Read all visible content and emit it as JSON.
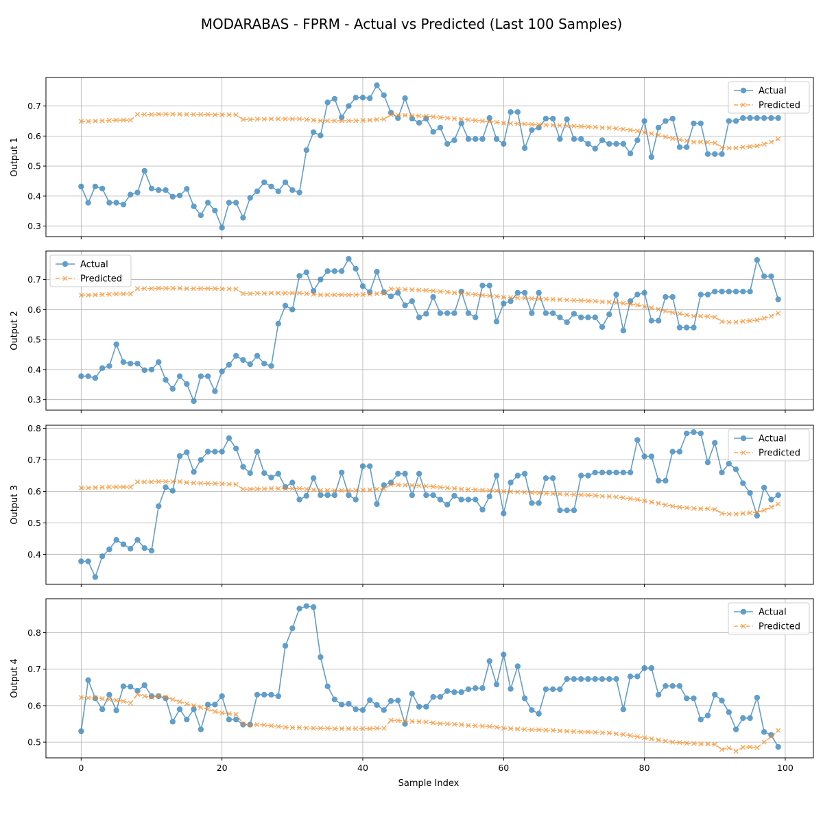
{
  "chart_data": {
    "type": "line",
    "title": "MODARABAS - FPRM - Actual vs Predicted (Last 100 Samples)",
    "xlabel": "Sample Index",
    "grid": true,
    "sharex": true,
    "xlim": [
      -5,
      104
    ],
    "xticks": [
      0,
      20,
      40,
      60,
      80,
      100
    ],
    "colors": {
      "actual": "#1f77b4",
      "predicted": "#ff7f0e"
    },
    "legend_labels": [
      "Actual",
      "Predicted"
    ],
    "panels": [
      {
        "ylabel": "Output 1",
        "ylim": [
          0.265,
          0.795
        ],
        "yticks": [
          0.3,
          0.4,
          0.5,
          0.6,
          0.7
        ],
        "legend": "top-right",
        "series": [
          {
            "name": "Actual",
            "values": [
              0.432,
              0.378,
              0.432,
              0.425,
              0.378,
              0.378,
              0.372,
              0.405,
              0.412,
              0.484,
              0.425,
              0.42,
              0.42,
              0.398,
              0.402,
              0.424,
              0.366,
              0.336,
              0.378,
              0.352,
              0.295,
              0.378,
              0.378,
              0.328,
              0.394,
              0.416,
              0.446,
              0.432,
              0.416,
              0.446,
              0.42,
              0.412,
              0.553,
              0.613,
              0.602,
              0.712,
              0.724,
              0.662,
              0.7,
              0.728,
              0.728,
              0.726,
              0.769,
              0.736,
              0.678,
              0.66,
              0.726,
              0.658,
              0.644,
              0.658,
              0.614,
              0.628,
              0.574,
              0.586,
              0.642,
              0.59,
              0.59,
              0.59,
              0.66,
              0.59,
              0.574,
              0.68,
              0.68,
              0.56,
              0.62,
              0.628,
              0.658,
              0.658,
              0.59,
              0.656,
              0.59,
              0.59,
              0.574,
              0.558,
              0.586,
              0.574,
              0.574,
              0.574,
              0.542,
              0.586,
              0.65,
              0.53,
              0.628,
              0.65,
              0.658,
              0.563,
              0.563,
              0.642,
              0.642,
              0.54,
              0.54,
              0.54,
              0.65,
              0.65,
              0.66,
              0.66,
              0.66,
              0.66,
              0.66,
              0.66
            ]
          },
          {
            "name": "Predicted",
            "values": [
              0.649,
              0.649,
              0.65,
              0.651,
              0.652,
              0.653,
              0.653,
              0.653,
              0.672,
              0.672,
              0.672,
              0.673,
              0.673,
              0.673,
              0.673,
              0.672,
              0.672,
              0.672,
              0.672,
              0.671,
              0.671,
              0.671,
              0.671,
              0.655,
              0.655,
              0.656,
              0.656,
              0.657,
              0.657,
              0.657,
              0.657,
              0.657,
              0.655,
              0.653,
              0.651,
              0.651,
              0.651,
              0.651,
              0.651,
              0.651,
              0.652,
              0.653,
              0.655,
              0.656,
              0.671,
              0.67,
              0.669,
              0.668,
              0.667,
              0.666,
              0.664,
              0.662,
              0.66,
              0.658,
              0.656,
              0.654,
              0.652,
              0.65,
              0.648,
              0.646,
              0.643,
              0.642,
              0.641,
              0.64,
              0.639,
              0.638,
              0.637,
              0.636,
              0.635,
              0.634,
              0.633,
              0.632,
              0.631,
              0.63,
              0.628,
              0.627,
              0.625,
              0.623,
              0.62,
              0.617,
              0.612,
              0.608,
              0.603,
              0.597,
              0.592,
              0.588,
              0.584,
              0.58,
              0.58,
              0.579,
              0.577,
              0.562,
              0.56,
              0.56,
              0.563,
              0.565,
              0.567,
              0.573,
              0.58,
              0.59
            ]
          }
        ]
      },
      {
        "ylabel": "Output 2",
        "ylim": [
          0.265,
          0.795
        ],
        "yticks": [
          0.3,
          0.4,
          0.5,
          0.6,
          0.7
        ],
        "legend": "top-left",
        "series": [
          {
            "name": "Actual",
            "values": [
              0.378,
              0.378,
              0.372,
              0.405,
              0.412,
              0.484,
              0.425,
              0.42,
              0.42,
              0.398,
              0.4,
              0.425,
              0.366,
              0.336,
              0.378,
              0.352,
              0.295,
              0.378,
              0.378,
              0.328,
              0.394,
              0.416,
              0.446,
              0.432,
              0.418,
              0.446,
              0.42,
              0.412,
              0.553,
              0.613,
              0.6,
              0.712,
              0.724,
              0.662,
              0.7,
              0.728,
              0.728,
              0.728,
              0.769,
              0.736,
              0.678,
              0.658,
              0.726,
              0.658,
              0.644,
              0.656,
              0.614,
              0.628,
              0.574,
              0.586,
              0.642,
              0.588,
              0.588,
              0.588,
              0.66,
              0.588,
              0.574,
              0.68,
              0.68,
              0.56,
              0.62,
              0.628,
              0.656,
              0.656,
              0.588,
              0.656,
              0.588,
              0.588,
              0.574,
              0.558,
              0.586,
              0.574,
              0.574,
              0.574,
              0.542,
              0.584,
              0.65,
              0.53,
              0.628,
              0.65,
              0.656,
              0.563,
              0.563,
              0.642,
              0.642,
              0.54,
              0.54,
              0.54,
              0.65,
              0.65,
              0.66,
              0.66,
              0.66,
              0.66,
              0.66,
              0.66,
              0.765,
              0.711,
              0.711,
              0.634
            ]
          },
          {
            "name": "Predicted",
            "values": [
              0.648,
              0.648,
              0.649,
              0.65,
              0.651,
              0.652,
              0.652,
              0.652,
              0.67,
              0.67,
              0.67,
              0.671,
              0.671,
              0.671,
              0.671,
              0.67,
              0.67,
              0.67,
              0.67,
              0.67,
              0.669,
              0.669,
              0.669,
              0.653,
              0.653,
              0.654,
              0.654,
              0.655,
              0.655,
              0.655,
              0.655,
              0.655,
              0.653,
              0.651,
              0.649,
              0.649,
              0.649,
              0.649,
              0.649,
              0.649,
              0.65,
              0.651,
              0.653,
              0.654,
              0.669,
              0.668,
              0.667,
              0.666,
              0.665,
              0.664,
              0.662,
              0.66,
              0.658,
              0.656,
              0.654,
              0.652,
              0.65,
              0.648,
              0.646,
              0.644,
              0.641,
              0.64,
              0.639,
              0.638,
              0.637,
              0.636,
              0.635,
              0.634,
              0.633,
              0.632,
              0.631,
              0.63,
              0.629,
              0.628,
              0.626,
              0.625,
              0.623,
              0.621,
              0.618,
              0.615,
              0.61,
              0.606,
              0.601,
              0.595,
              0.59,
              0.586,
              0.582,
              0.578,
              0.578,
              0.577,
              0.575,
              0.56,
              0.558,
              0.558,
              0.561,
              0.563,
              0.565,
              0.571,
              0.578,
              0.588
            ]
          }
        ]
      },
      {
        "ylabel": "Output 3",
        "ylim": [
          0.305,
          0.81
        ],
        "yticks": [
          0.4,
          0.5,
          0.6,
          0.7,
          0.8
        ],
        "legend": "top-right",
        "series": [
          {
            "name": "Actual",
            "values": [
              0.378,
              0.378,
              0.328,
              0.394,
              0.416,
              0.446,
              0.432,
              0.418,
              0.446,
              0.42,
              0.412,
              0.553,
              0.613,
              0.602,
              0.712,
              0.724,
              0.662,
              0.7,
              0.726,
              0.726,
              0.726,
              0.769,
              0.736,
              0.678,
              0.658,
              0.726,
              0.658,
              0.644,
              0.656,
              0.614,
              0.628,
              0.574,
              0.586,
              0.642,
              0.588,
              0.588,
              0.588,
              0.66,
              0.588,
              0.574,
              0.68,
              0.68,
              0.56,
              0.62,
              0.628,
              0.656,
              0.656,
              0.588,
              0.656,
              0.588,
              0.588,
              0.574,
              0.558,
              0.586,
              0.574,
              0.574,
              0.574,
              0.542,
              0.584,
              0.65,
              0.53,
              0.628,
              0.65,
              0.656,
              0.563,
              0.563,
              0.642,
              0.642,
              0.54,
              0.54,
              0.54,
              0.65,
              0.65,
              0.66,
              0.66,
              0.66,
              0.66,
              0.66,
              0.66,
              0.763,
              0.711,
              0.711,
              0.634,
              0.634,
              0.726,
              0.726,
              0.784,
              0.788,
              0.784,
              0.692,
              0.754,
              0.66,
              0.688,
              0.67,
              0.626,
              0.595,
              0.523,
              0.612,
              0.574,
              0.588
            ]
          },
          {
            "name": "Predicted",
            "values": [
              0.611,
              0.611,
              0.612,
              0.613,
              0.614,
              0.614,
              0.614,
              0.614,
              0.63,
              0.63,
              0.63,
              0.631,
              0.631,
              0.631,
              0.631,
              0.628,
              0.627,
              0.626,
              0.625,
              0.625,
              0.624,
              0.623,
              0.622,
              0.607,
              0.607,
              0.608,
              0.608,
              0.609,
              0.609,
              0.609,
              0.609,
              0.609,
              0.607,
              0.605,
              0.603,
              0.603,
              0.603,
              0.603,
              0.603,
              0.603,
              0.604,
              0.605,
              0.607,
              0.608,
              0.622,
              0.621,
              0.62,
              0.619,
              0.618,
              0.617,
              0.615,
              0.613,
              0.611,
              0.609,
              0.607,
              0.606,
              0.605,
              0.604,
              0.603,
              0.602,
              0.6,
              0.599,
              0.598,
              0.597,
              0.596,
              0.595,
              0.594,
              0.593,
              0.592,
              0.591,
              0.59,
              0.589,
              0.588,
              0.587,
              0.585,
              0.584,
              0.582,
              0.58,
              0.577,
              0.574,
              0.57,
              0.566,
              0.562,
              0.557,
              0.553,
              0.55,
              0.548,
              0.546,
              0.545,
              0.545,
              0.543,
              0.53,
              0.528,
              0.528,
              0.53,
              0.532,
              0.534,
              0.54,
              0.55,
              0.56
            ]
          }
        ]
      },
      {
        "ylabel": "Output 4",
        "ylim": [
          0.457,
          0.893
        ],
        "yticks": [
          0.5,
          0.6,
          0.7,
          0.8
        ],
        "legend": "top-right",
        "series": [
          {
            "name": "Actual",
            "values": [
              0.53,
              0.67,
              0.62,
              0.59,
              0.63,
              0.587,
              0.653,
              0.652,
              0.641,
              0.656,
              0.626,
              0.626,
              0.62,
              0.556,
              0.59,
              0.562,
              0.59,
              0.535,
              0.603,
              0.603,
              0.626,
              0.562,
              0.562,
              0.548,
              0.548,
              0.63,
              0.63,
              0.63,
              0.626,
              0.764,
              0.812,
              0.866,
              0.873,
              0.87,
              0.733,
              0.653,
              0.617,
              0.603,
              0.605,
              0.59,
              0.588,
              0.615,
              0.602,
              0.588,
              0.613,
              0.614,
              0.55,
              0.633,
              0.597,
              0.597,
              0.624,
              0.624,
              0.64,
              0.637,
              0.637,
              0.645,
              0.648,
              0.648,
              0.722,
              0.658,
              0.74,
              0.646,
              0.708,
              0.62,
              0.588,
              0.578,
              0.645,
              0.645,
              0.645,
              0.673,
              0.673,
              0.673,
              0.673,
              0.673,
              0.673,
              0.673,
              0.673,
              0.59,
              0.68,
              0.68,
              0.703,
              0.703,
              0.63,
              0.654,
              0.654,
              0.654,
              0.62,
              0.62,
              0.562,
              0.573,
              0.63,
              0.614,
              0.582,
              0.535,
              0.566,
              0.566,
              0.622,
              0.528,
              0.52,
              0.487
            ]
          },
          {
            "name": "Predicted",
            "values": [
              0.622,
              0.621,
              0.622,
              0.619,
              0.617,
              0.615,
              0.612,
              0.607,
              0.631,
              0.626,
              0.623,
              0.627,
              0.624,
              0.617,
              0.611,
              0.605,
              0.6,
              0.595,
              0.59,
              0.584,
              0.58,
              0.578,
              0.576,
              0.55,
              0.547,
              0.548,
              0.547,
              0.545,
              0.543,
              0.541,
              0.54,
              0.54,
              0.539,
              0.538,
              0.538,
              0.538,
              0.537,
              0.537,
              0.537,
              0.537,
              0.537,
              0.537,
              0.538,
              0.538,
              0.56,
              0.559,
              0.558,
              0.557,
              0.556,
              0.555,
              0.553,
              0.551,
              0.55,
              0.549,
              0.548,
              0.546,
              0.545,
              0.544,
              0.543,
              0.541,
              0.538,
              0.537,
              0.536,
              0.535,
              0.534,
              0.534,
              0.533,
              0.532,
              0.531,
              0.53,
              0.529,
              0.528,
              0.528,
              0.527,
              0.526,
              0.525,
              0.523,
              0.521,
              0.518,
              0.515,
              0.512,
              0.509,
              0.506,
              0.503,
              0.5,
              0.499,
              0.497,
              0.496,
              0.495,
              0.495,
              0.494,
              0.48,
              0.484,
              0.475,
              0.486,
              0.487,
              0.485,
              0.5,
              0.515,
              0.532
            ]
          }
        ]
      }
    ]
  }
}
